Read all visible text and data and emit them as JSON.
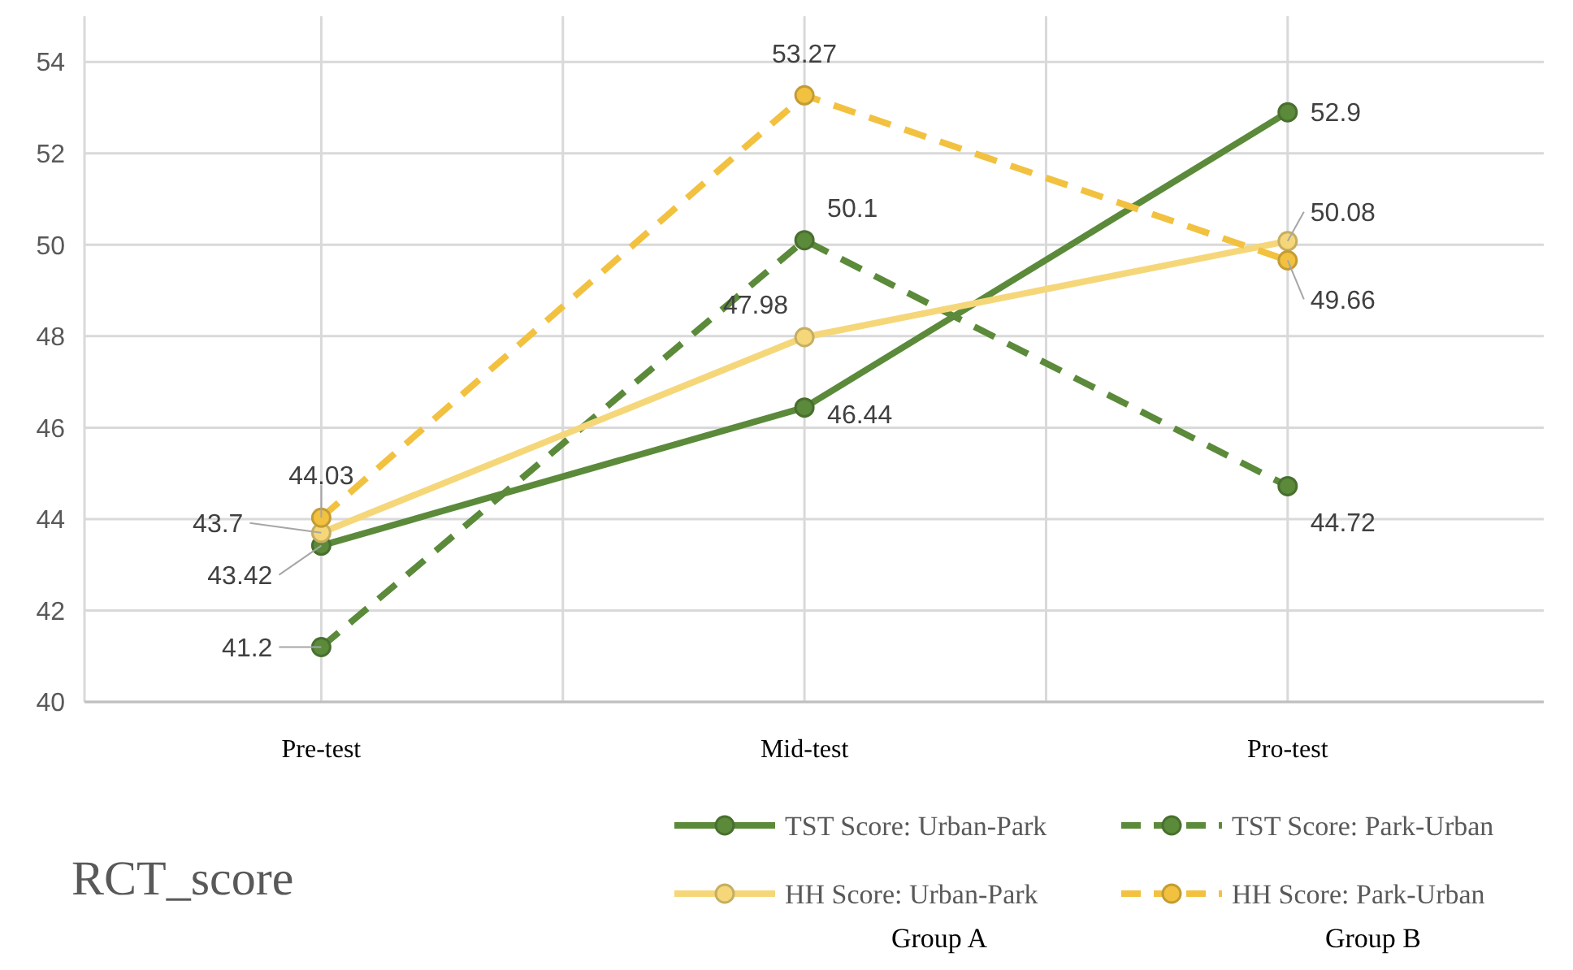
{
  "chart_data": {
    "type": "line",
    "title": "RCT_score",
    "categories": [
      "Pre-test",
      "Mid-test",
      "Pro-test"
    ],
    "series": [
      {
        "name": "TST Score: Urban-Park",
        "color": "#5b8a3a",
        "values": [
          43.42,
          46.44,
          52.9
        ],
        "line_style": "solid"
      },
      {
        "name": "TST Score: Park-Urban",
        "color": "#5b8a3a",
        "values": [
          41.2,
          50.1,
          44.72
        ],
        "line_style": "dashed"
      },
      {
        "name": "HH Score: Urban-Park",
        "color": "#f5d77a",
        "values": [
          43.7,
          47.98,
          50.08
        ],
        "line_style": "solid"
      },
      {
        "name": "HH Score: Park-Urban",
        "color": "#f2c140",
        "values": [
          44.03,
          53.27,
          49.66
        ],
        "line_style": "dashed"
      }
    ],
    "ylim": [
      40,
      55
    ],
    "yticks": [
      40,
      42,
      44,
      46,
      48,
      50,
      52,
      54
    ],
    "grid": true,
    "marker": "circle",
    "data_labels": true,
    "legend": "bottom right",
    "annotations": [
      "Group A",
      "Group B"
    ]
  }
}
